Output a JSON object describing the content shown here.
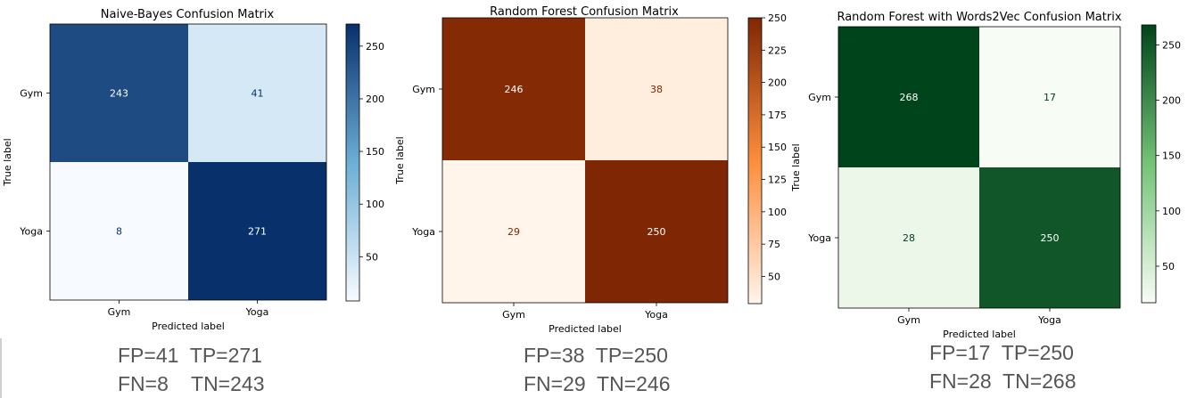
{
  "chart_data": [
    {
      "type": "heatmap",
      "title": "Naive-Bayes Confusion Matrix",
      "xlabel": "Predicted label",
      "ylabel": "True label",
      "x_categories": [
        "Gym",
        "Yoga"
      ],
      "y_categories": [
        "Gym",
        "Yoga"
      ],
      "values": [
        [
          243,
          41
        ],
        [
          8,
          271
        ]
      ],
      "colormap": "Blues",
      "colors": {
        "low": "#f7fbff",
        "mid": "#6baed6",
        "high": "#08306b",
        "light_text": "#ffffff",
        "dark_text": "#08306b"
      },
      "vmin": 8,
      "vmax": 271,
      "colorbar_ticks": [
        "50",
        "100",
        "150",
        "200",
        "250"
      ],
      "colorbar_values": [
        50,
        100,
        150,
        200,
        250
      ],
      "metrics": [
        "FP=41  TP=271",
        "FN=8    TN=243"
      ]
    },
    {
      "type": "heatmap",
      "title": "Random Forest Confusion Matrix",
      "xlabel": "Predicted label",
      "ylabel": "True label",
      "x_categories": [
        "Gym",
        "Yoga"
      ],
      "y_categories": [
        "Gym",
        "Yoga"
      ],
      "values": [
        [
          246,
          38
        ],
        [
          29,
          250
        ]
      ],
      "colormap": "Oranges",
      "colors": {
        "low": "#fff5eb",
        "mid": "#fd8d3c",
        "high": "#7f2704",
        "light_text": "#ffffff",
        "dark_text": "#7f2704"
      },
      "vmin": 29,
      "vmax": 250,
      "colorbar_ticks": [
        "50",
        "75",
        "100",
        "125",
        "150",
        "175",
        "200",
        "225",
        "250"
      ],
      "colorbar_values": [
        50,
        75,
        100,
        125,
        150,
        175,
        200,
        225,
        250
      ],
      "metrics": [
        "FP=38  TP=250",
        "FN=29  TN=246"
      ]
    },
    {
      "type": "heatmap",
      "title": "Random Forest with Words2Vec Confusion Matrix",
      "xlabel": "Predicted label",
      "ylabel": "True label",
      "x_categories": [
        "Gym",
        "Yoga"
      ],
      "y_categories": [
        "Gym",
        "Yoga"
      ],
      "values": [
        [
          268,
          17
        ],
        [
          28,
          250
        ]
      ],
      "colormap": "Greens",
      "colors": {
        "low": "#f7fcf5",
        "mid": "#74c476",
        "high": "#00441b",
        "light_text": "#ffffff",
        "dark_text": "#00441b"
      },
      "vmin": 17,
      "vmax": 268,
      "colorbar_ticks": [
        "50",
        "100",
        "150",
        "200",
        "250"
      ],
      "colorbar_values": [
        50,
        100,
        150,
        200,
        250
      ],
      "metrics": [
        "FP=17  TP=250",
        "FN=28  TN=268"
      ]
    }
  ]
}
